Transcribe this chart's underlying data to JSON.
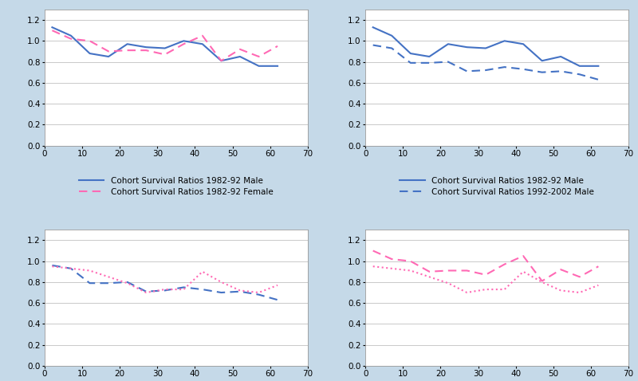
{
  "x": [
    2,
    7,
    12,
    17,
    22,
    27,
    32,
    37,
    42,
    47,
    52,
    57,
    62
  ],
  "male_8292": [
    1.13,
    1.05,
    0.88,
    0.85,
    0.97,
    0.94,
    0.93,
    1.0,
    0.97,
    0.81,
    0.85,
    0.76,
    0.76
  ],
  "female_8292": [
    1.1,
    1.02,
    1.0,
    0.9,
    0.91,
    0.91,
    0.87,
    0.97,
    1.05,
    0.81,
    0.92,
    0.85,
    0.95
  ],
  "male_9202": [
    0.96,
    0.93,
    0.79,
    0.79,
    0.8,
    0.71,
    0.72,
    0.75,
    0.73,
    0.7,
    0.71,
    0.68,
    0.63
  ],
  "female_9202": [
    0.95,
    0.93,
    0.91,
    0.85,
    0.79,
    0.7,
    0.73,
    0.73,
    0.9,
    0.8,
    0.72,
    0.7,
    0.77
  ],
  "color_blue_solid": "#4472C4",
  "color_blue_dashed": "#4472C4",
  "color_pink_dashed": "#FF69B4",
  "color_pink_dotted": "#FF69B4",
  "bg_color": "#C5D9E8",
  "plot_bg": "#FFFFFF",
  "ylim": [
    0.0,
    1.3
  ],
  "yticks": [
    0.0,
    0.2,
    0.4,
    0.6,
    0.8,
    1.0,
    1.2
  ],
  "xlim": [
    0,
    70
  ],
  "xticks": [
    0,
    10,
    20,
    30,
    40,
    50,
    60,
    70
  ],
  "legend_fontsize": 7.5,
  "tick_fontsize": 7.5
}
